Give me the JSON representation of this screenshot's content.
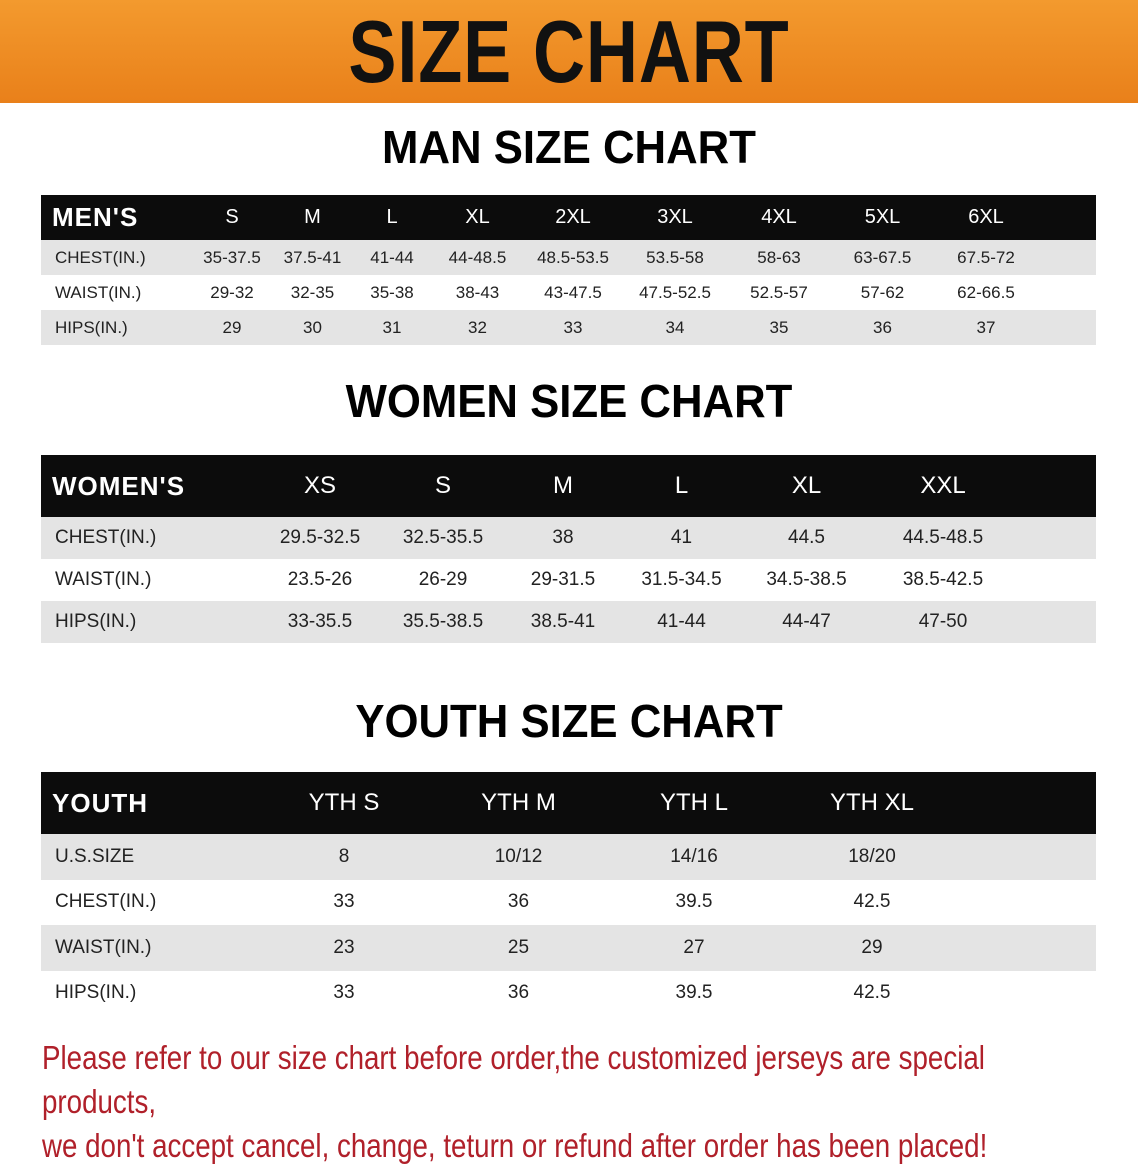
{
  "banner": {
    "title": "SIZE CHART",
    "color": "#ee8a22"
  },
  "men": {
    "title": "MAN SIZE CHART",
    "header": [
      "MEN'S",
      "S",
      "M",
      "L",
      "XL",
      "2XL",
      "3XL",
      "4XL",
      "5XL",
      "6XL"
    ],
    "rows": [
      [
        "CHEST(IN.)",
        "35-37.5",
        "37.5-41",
        "41-44",
        "44-48.5",
        "48.5-53.5",
        "53.5-58",
        "58-63",
        "63-67.5",
        "67.5-72"
      ],
      [
        "WAIST(IN.)",
        "29-32",
        "32-35",
        "35-38",
        "38-43",
        "43-47.5",
        "47.5-52.5",
        "52.5-57",
        "57-62",
        "62-66.5"
      ],
      [
        "HIPS(IN.)",
        "29",
        "30",
        "31",
        "32",
        "33",
        "34",
        "35",
        "36",
        "37"
      ]
    ]
  },
  "women": {
    "title": "WOMEN SIZE CHART",
    "header": [
      "WOMEN'S",
      "XS",
      "S",
      "M",
      "L",
      "XL",
      "XXL"
    ],
    "rows": [
      [
        "CHEST(IN.)",
        "29.5-32.5",
        "32.5-35.5",
        "38",
        "41",
        "44.5",
        "44.5-48.5"
      ],
      [
        "WAIST(IN.)",
        "23.5-26",
        "26-29",
        "29-31.5",
        "31.5-34.5",
        "34.5-38.5",
        "38.5-42.5"
      ],
      [
        "HIPS(IN.)",
        "33-35.5",
        "35.5-38.5",
        "38.5-41",
        "41-44",
        "44-47",
        "47-50"
      ]
    ]
  },
  "youth": {
    "title": "YOUTH SIZE CHART",
    "header": [
      "YOUTH",
      "YTH S",
      "YTH M",
      "YTH L",
      "YTH XL"
    ],
    "rows": [
      [
        "U.S.SIZE",
        "8",
        "10/12",
        "14/16",
        "18/20"
      ],
      [
        "CHEST(IN.)",
        "33",
        "36",
        "39.5",
        "42.5"
      ],
      [
        "WAIST(IN.)",
        "23",
        "25",
        "27",
        "29"
      ],
      [
        "HIPS(IN.)",
        "33",
        "36",
        "39.5",
        "42.5"
      ]
    ]
  },
  "footer": {
    "line1": "Please refer to our size chart before order,the customized jerseys are special products,",
    "line2": "we don't accept cancel, change, teturn or refund after order has been placed!",
    "color": "#b0202a"
  }
}
